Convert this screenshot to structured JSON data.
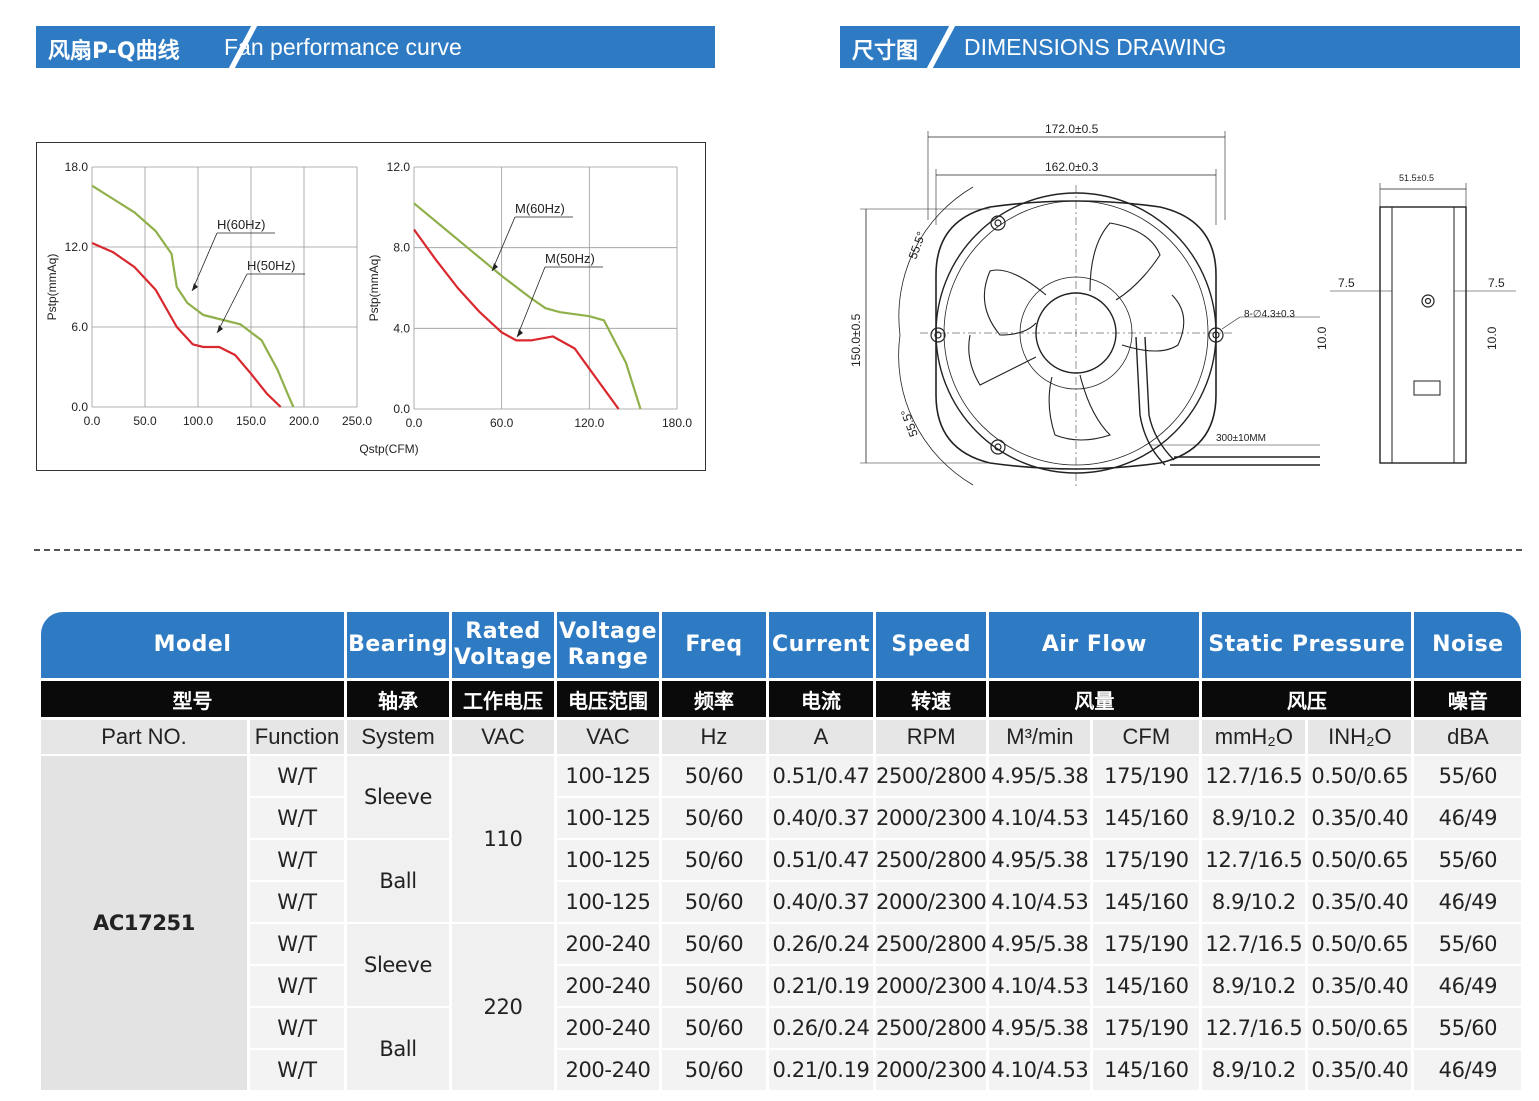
{
  "sections": {
    "pq": {
      "zh": "风扇P-Q曲线",
      "en": "Fan performance curve"
    },
    "dim": {
      "zh": "尺寸图",
      "en": "DIMENSIONS DRAWING"
    }
  },
  "chart_data": [
    {
      "type": "line",
      "ylabel": "Pstp(mmAq)",
      "xlabel": "",
      "xlim": [
        0,
        250
      ],
      "ylim": [
        0,
        18
      ],
      "xticks": [
        "0.0",
        "50.0",
        "100.0",
        "150.0",
        "200.0",
        "250.0"
      ],
      "yticks": [
        "0.0",
        "6.0",
        "12.0",
        "18.0"
      ],
      "grid": true,
      "series": [
        {
          "name": "H(60Hz)",
          "color": "#8fb04a",
          "x": [
            0,
            20,
            40,
            60,
            75,
            80,
            90,
            105,
            120,
            140,
            160,
            175,
            185,
            190
          ],
          "y": [
            16.6,
            15.6,
            14.6,
            13.2,
            11.5,
            9.0,
            7.8,
            6.9,
            6.6,
            6.2,
            5.0,
            2.8,
            0.9,
            0
          ]
        },
        {
          "name": "H(50Hz)",
          "color": "#d9282e",
          "x": [
            0,
            20,
            40,
            60,
            80,
            95,
            105,
            120,
            135,
            150,
            165,
            178
          ],
          "y": [
            12.3,
            11.6,
            10.5,
            8.8,
            6.0,
            4.7,
            4.5,
            4.5,
            3.9,
            2.5,
            1.0,
            0
          ]
        }
      ],
      "annotations": [
        "H(60Hz)",
        "H(50Hz)"
      ]
    },
    {
      "type": "line",
      "ylabel": "Pstp(mmAq)",
      "xlabel": "Qstp(CFM)",
      "xlim": [
        0,
        180
      ],
      "ylim": [
        0,
        12
      ],
      "xticks": [
        "0.0",
        "60.0",
        "120.0",
        "180.0"
      ],
      "yticks": [
        "0.0",
        "4.0",
        "8.0",
        "12.0"
      ],
      "grid": true,
      "series": [
        {
          "name": "M(60Hz)",
          "color": "#8fb04a",
          "x": [
            0,
            20,
            40,
            60,
            80,
            90,
            100,
            110,
            120,
            130,
            145,
            155
          ],
          "y": [
            10.2,
            9.0,
            7.8,
            6.6,
            5.5,
            5.0,
            4.8,
            4.7,
            4.6,
            4.4,
            2.3,
            0
          ]
        },
        {
          "name": "M(50Hz)",
          "color": "#d9282e",
          "x": [
            0,
            15,
            30,
            45,
            60,
            70,
            80,
            95,
            110,
            120,
            130,
            140
          ],
          "y": [
            8.9,
            7.4,
            6.0,
            4.8,
            3.8,
            3.4,
            3.4,
            3.6,
            3.0,
            2.0,
            1.0,
            0
          ]
        }
      ],
      "annotations": [
        "M(60Hz)",
        "M(50Hz)"
      ]
    }
  ],
  "dimensions": {
    "outer_width": "172.0±0.5",
    "inner_width": "162.0±0.3",
    "height": "150.0±0.5",
    "angle1": "55.5°",
    "angle2": "55.5°",
    "holes": "8-∅4.3±0.3",
    "lead": "300±10MM",
    "depth": "51.5±0.5",
    "side_left": "7.5",
    "side_right": "7.5",
    "side_h_left": "10.0",
    "side_h_right": "10.0"
  },
  "table": {
    "headers": [
      "Model",
      "Bearing",
      "Rated Voltage",
      "Voltage Range",
      "Freq",
      "Current",
      "Speed",
      "Air Flow",
      "Static Pressure",
      "Noise"
    ],
    "headers_zh": [
      "型号",
      "轴承",
      "工作电压",
      "电压范围",
      "频率",
      "电流",
      "转速",
      "风量",
      "风压",
      "噪音"
    ],
    "units": {
      "part": "Part NO.",
      "function": "Function",
      "system": "System",
      "rated": "VAC",
      "range": "VAC",
      "freq": "Hz",
      "current": "A",
      "speed": "RPM",
      "flow1": "M³/min",
      "flow2": "CFM",
      "press1": "mmH₂O",
      "press2": "INH₂O",
      "noise": "dBA"
    },
    "model": "AC17251",
    "bearings": [
      "Sleeve",
      "Ball",
      "Sleeve",
      "Ball"
    ],
    "voltages": [
      "110",
      "220"
    ],
    "rows": [
      {
        "fn": "W/T",
        "range": "100-125",
        "freq": "50/60",
        "current": "0.51/0.47",
        "speed": "2500/2800",
        "m3": "4.95/5.38",
        "cfm": "175/190",
        "mmh2o": "12.7/16.5",
        "inh2o": "0.50/0.65",
        "noise": "55/60"
      },
      {
        "fn": "W/T",
        "range": "100-125",
        "freq": "50/60",
        "current": "0.40/0.37",
        "speed": "2000/2300",
        "m3": "4.10/4.53",
        "cfm": "145/160",
        "mmh2o": "8.9/10.2",
        "inh2o": "0.35/0.40",
        "noise": "46/49"
      },
      {
        "fn": "W/T",
        "range": "100-125",
        "freq": "50/60",
        "current": "0.51/0.47",
        "speed": "2500/2800",
        "m3": "4.95/5.38",
        "cfm": "175/190",
        "mmh2o": "12.7/16.5",
        "inh2o": "0.50/0.65",
        "noise": "55/60"
      },
      {
        "fn": "W/T",
        "range": "100-125",
        "freq": "50/60",
        "current": "0.40/0.37",
        "speed": "2000/2300",
        "m3": "4.10/4.53",
        "cfm": "145/160",
        "mmh2o": "8.9/10.2",
        "inh2o": "0.35/0.40",
        "noise": "46/49"
      },
      {
        "fn": "W/T",
        "range": "200-240",
        "freq": "50/60",
        "current": "0.26/0.24",
        "speed": "2500/2800",
        "m3": "4.95/5.38",
        "cfm": "175/190",
        "mmh2o": "12.7/16.5",
        "inh2o": "0.50/0.65",
        "noise": "55/60"
      },
      {
        "fn": "W/T",
        "range": "200-240",
        "freq": "50/60",
        "current": "0.21/0.19",
        "speed": "2000/2300",
        "m3": "4.10/4.53",
        "cfm": "145/160",
        "mmh2o": "8.9/10.2",
        "inh2o": "0.35/0.40",
        "noise": "46/49"
      },
      {
        "fn": "W/T",
        "range": "200-240",
        "freq": "50/60",
        "current": "0.26/0.24",
        "speed": "2500/2800",
        "m3": "4.95/5.38",
        "cfm": "175/190",
        "mmh2o": "12.7/16.5",
        "inh2o": "0.50/0.65",
        "noise": "55/60"
      },
      {
        "fn": "W/T",
        "range": "200-240",
        "freq": "50/60",
        "current": "0.21/0.19",
        "speed": "2000/2300",
        "m3": "4.10/4.53",
        "cfm": "145/160",
        "mmh2o": "8.9/10.2",
        "inh2o": "0.35/0.40",
        "noise": "46/49"
      }
    ]
  }
}
